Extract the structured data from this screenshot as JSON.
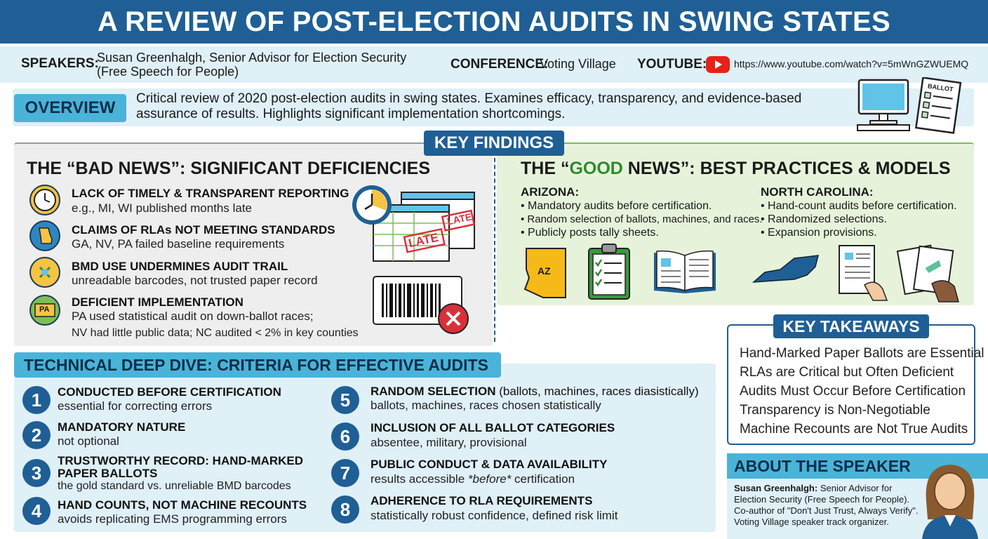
{
  "header": {
    "title": "A REVIEW OF POST-ELECTION AUDITS IN SWING STATES"
  },
  "meta": {
    "speakers_label": "SPEAKERS:",
    "speakers_line1": "Susan Greenhalgh, Senior Advisor for Election Security",
    "speakers_line2": "(Free Speech for People)",
    "conference_label": "CONFERENCE:",
    "conference_value": "Voting Village",
    "youtube_label": "YOUTUBE:",
    "youtube_url": "https://www.youtube.com/watch?v=5mWnGZWUEMQ"
  },
  "overview": {
    "label": "OVERVIEW",
    "line1": "Critical review of 2020 post-election audits in swing states. Examines efficacy, transparency, and evidence-based",
    "line2": "assurance of results. Highlights significant implementation shortcomings.",
    "ballot_label": "BALLOT"
  },
  "key_findings": {
    "label": "KEY FINDINGS",
    "bad": {
      "heading": "THE “BAD NEWS”: SIGNIFICANT DEFICIENCIES",
      "items": [
        {
          "title": "LACK OF TIMELY & TRANSPARENT REPORTING",
          "desc": "e.g., MI, WI published months late",
          "icon": "clock-icon"
        },
        {
          "title": "CLAIMS OF RLAs NOT MEETING STANDARDS",
          "desc": "GA, NV, PA failed baseline requirements",
          "icon": "georgia-map-icon"
        },
        {
          "title": "BMD USE UNDERMINES AUDIT TRAIL",
          "desc": "unreadable barcodes, not trusted paper record",
          "icon": "expand-arrows-icon"
        },
        {
          "title": "DEFICIENT IMPLEMENTATION",
          "desc": "PA used statistical audit on down-ballot races;",
          "desc2": "NV had little public data; NC audited < 2% in key counties",
          "icon": "pennsylvania-map-icon",
          "icon_text": "PA"
        }
      ],
      "late_stamp": "LATE",
      "late_stamp2": "LATE"
    },
    "good": {
      "heading_pre": "THE “",
      "heading_good": "GOOD",
      "heading_post": " NEWS”: BEST PRACTICES & MODELS",
      "arizona": {
        "name": "ARIZONA:",
        "items": [
          "• Mandatory audits before certification.",
          "• Random selection of ballots, machines, and races.",
          "• Publicly posts tally sheets."
        ],
        "map_text": "AZ"
      },
      "north_carolina": {
        "name": "NORTH CAROLINA:",
        "items": [
          "• Hand-count audits before certification.",
          "• Randomized selections.",
          "• Expansion provisions."
        ]
      }
    }
  },
  "technical": {
    "label": "TECHNICAL DEEP DIVE: CRITERIA FOR EFFECTIVE AUDITS",
    "criteria": [
      {
        "num": "1",
        "title": "CONDUCTED BEFORE CERTIFICATION",
        "desc": "essential for correcting errors"
      },
      {
        "num": "2",
        "title": "MANDATORY NATURE",
        "desc": "not optional"
      },
      {
        "num": "3",
        "title": "TRUSTWORTHY RECORD: HAND-MARKED",
        "title2": "PAPER BALLOTS",
        "desc": "the gold standard vs. unreliable BMD barcodes"
      },
      {
        "num": "4",
        "title": "HAND COUNTS, NOT MACHINE RECOUNTS",
        "desc": "avoids replicating EMS programming errors"
      },
      {
        "num": "5",
        "title": "RANDOM SELECTION",
        "title_suffix": " (ballots, machines, races diasistically)",
        "desc": "ballots, machines, races chosen statistically"
      },
      {
        "num": "6",
        "title": "INCLUSION OF ALL BALLOT CATEGORIES",
        "desc": "absentee, military, provisional"
      },
      {
        "num": "7",
        "title": "PUBLIC CONDUCT & DATA AVAILABILITY",
        "desc_pre": "results accessible ",
        "desc_em": "*before*",
        "desc_post": " certification"
      },
      {
        "num": "8",
        "title": "ADHERENCE TO RLA REQUIREMENTS",
        "desc": "statistically robust confidence, defined risk limit"
      }
    ]
  },
  "takeaways": {
    "label": "KEY TAKEAWAYS",
    "items": [
      "Hand-Marked Paper Ballots are Essential",
      "RLAs are Critical but Often Deficient",
      "Audits Must Occur Before Certification",
      "Transparency is Non-Negotiable",
      "Machine Recounts are Not True Audits"
    ]
  },
  "about": {
    "label": "ABOUT THE SPEAKER",
    "name": "Susan Greenhalgh:",
    "bio1": " Senior Advisor for",
    "bio2": "Election Security (Free Speech for People).",
    "bio3": "Co-author of \"Don't Just Trust, Always Verify\".",
    "bio4": "Voting Village speaker track organizer."
  },
  "colors": {
    "navy": "#1f5f95",
    "light_blue": "#dff0f7",
    "accent_blue": "#4ab3d8",
    "good_green": "#2e8b2e",
    "late_red": "#d9303a"
  }
}
